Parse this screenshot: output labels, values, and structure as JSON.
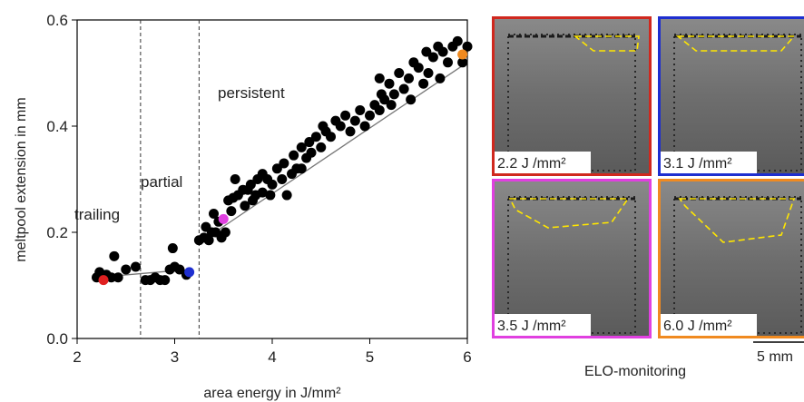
{
  "chart_data": {
    "type": "scatter",
    "xlabel": "area energy in J/mm²",
    "ylabel": "meltpool extension in mm",
    "xlim": [
      2,
      6
    ],
    "ylim": [
      0,
      0.6
    ],
    "xticks": [
      2,
      3,
      4,
      5,
      6
    ],
    "yticks": [
      {
        "value": 0,
        "label": "0.0"
      },
      0.2,
      0.4,
      0.6
    ],
    "series": [
      {
        "color": "#000000",
        "x": [
          2.2,
          2.23,
          2.3,
          2.35,
          2.38,
          2.42,
          2.5,
          2.6,
          2.7,
          2.75,
          2.8,
          2.85,
          2.9,
          2.95,
          2.98,
          3.0,
          3.05,
          3.12,
          3.25,
          3.3,
          3.32,
          3.35,
          3.38,
          3.4,
          3.42,
          3.45,
          3.48,
          3.52,
          3.55,
          3.58,
          3.6,
          3.62,
          3.65,
          3.7,
          3.72,
          3.75,
          3.78,
          3.8,
          3.83,
          3.85,
          3.9,
          3.95,
          3.98,
          4.0,
          4.05,
          4.1,
          4.12,
          4.15,
          4.2,
          4.22,
          4.25,
          4.3,
          4.35,
          4.38,
          4.4,
          4.45,
          4.5,
          4.52,
          4.55,
          4.6,
          4.65,
          4.7,
          4.75,
          4.8,
          4.85,
          4.9,
          4.95,
          5.0,
          5.05,
          5.1,
          5.12,
          5.15,
          5.2,
          5.22,
          5.25,
          5.3,
          5.35,
          5.4,
          5.42,
          5.45,
          5.5,
          5.55,
          5.58,
          5.6,
          5.65,
          5.7,
          5.72,
          5.75,
          5.8,
          5.85,
          5.9,
          5.95,
          6.0,
          5.1,
          4.3,
          3.9
        ],
        "values": [
          0.115,
          0.125,
          0.12,
          0.115,
          0.155,
          0.115,
          0.13,
          0.135,
          0.11,
          0.11,
          0.115,
          0.11,
          0.11,
          0.13,
          0.17,
          0.135,
          0.13,
          0.12,
          0.185,
          0.19,
          0.21,
          0.185,
          0.2,
          0.235,
          0.2,
          0.22,
          0.19,
          0.2,
          0.26,
          0.24,
          0.265,
          0.3,
          0.27,
          0.28,
          0.25,
          0.28,
          0.29,
          0.26,
          0.27,
          0.3,
          0.275,
          0.3,
          0.27,
          0.29,
          0.32,
          0.3,
          0.33,
          0.27,
          0.31,
          0.345,
          0.32,
          0.36,
          0.34,
          0.37,
          0.35,
          0.38,
          0.36,
          0.4,
          0.39,
          0.38,
          0.41,
          0.4,
          0.42,
          0.39,
          0.41,
          0.43,
          0.4,
          0.42,
          0.44,
          0.43,
          0.46,
          0.45,
          0.48,
          0.44,
          0.46,
          0.5,
          0.47,
          0.49,
          0.45,
          0.52,
          0.51,
          0.48,
          0.54,
          0.5,
          0.53,
          0.55,
          0.49,
          0.54,
          0.52,
          0.55,
          0.56,
          0.52,
          0.55,
          0.49,
          0.32,
          0.31
        ]
      },
      {
        "color": "#e02020",
        "x": [
          2.27
        ],
        "values": [
          0.11
        ]
      },
      {
        "color": "#1f2fd0",
        "x": [
          3.15
        ],
        "values": [
          0.125
        ]
      },
      {
        "color": "#e040e0",
        "x": [
          3.5
        ],
        "values": [
          0.225
        ]
      },
      {
        "color": "#f08a20",
        "x": [
          5.95
        ],
        "values": [
          0.535
        ]
      }
    ],
    "fit_lines": [
      {
        "color": "#777777",
        "x": [
          2.2,
          3.15
        ],
        "values": [
          0.115,
          0.13
        ]
      },
      {
        "color": "#777777",
        "x": [
          3.25,
          6.0
        ],
        "values": [
          0.18,
          0.52
        ]
      }
    ],
    "thresholds": [
      2.65,
      3.25
    ],
    "regions": [
      "trailing",
      "partial",
      "persistent"
    ],
    "panels": [
      {
        "label": "2.2 J /mm²",
        "color": "#d0281e"
      },
      {
        "label": "3.1 J /mm²",
        "color": "#1e2fd0"
      },
      {
        "label": "3.5 J /mm²",
        "color": "#e040e0"
      },
      {
        "label": "6.0 J /mm²",
        "color": "#f08a20"
      }
    ],
    "scale_bar": "5 mm",
    "caption": "ELO-monitoring"
  }
}
